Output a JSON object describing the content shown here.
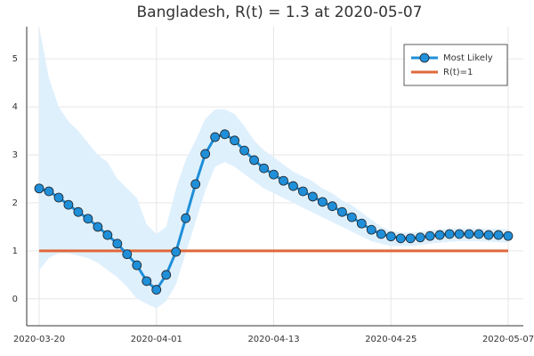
{
  "chart_data": {
    "type": "line",
    "title": "Bangladesh, R(t) = 1.3 at 2020-05-07",
    "x": [
      "2020-03-20",
      "2020-03-21",
      "2020-03-22",
      "2020-03-23",
      "2020-03-24",
      "2020-03-25",
      "2020-03-26",
      "2020-03-27",
      "2020-03-28",
      "2020-03-29",
      "2020-03-30",
      "2020-03-31",
      "2020-04-01",
      "2020-04-02",
      "2020-04-03",
      "2020-04-04",
      "2020-04-05",
      "2020-04-06",
      "2020-04-07",
      "2020-04-08",
      "2020-04-09",
      "2020-04-10",
      "2020-04-11",
      "2020-04-12",
      "2020-04-13",
      "2020-04-14",
      "2020-04-15",
      "2020-04-16",
      "2020-04-17",
      "2020-04-18",
      "2020-04-19",
      "2020-04-20",
      "2020-04-21",
      "2020-04-22",
      "2020-04-23",
      "2020-04-24",
      "2020-04-25",
      "2020-04-26",
      "2020-04-27",
      "2020-04-28",
      "2020-04-29",
      "2020-04-30",
      "2020-05-01",
      "2020-05-02",
      "2020-05-03",
      "2020-05-04",
      "2020-05-05",
      "2020-05-06",
      "2020-05-07"
    ],
    "series": [
      {
        "name": "Most Likely",
        "color": "#1f8fd9",
        "marker": true,
        "values": [
          2.3,
          2.24,
          2.11,
          1.96,
          1.81,
          1.67,
          1.5,
          1.33,
          1.15,
          0.93,
          0.7,
          0.37,
          0.19,
          0.5,
          0.98,
          1.68,
          2.39,
          3.02,
          3.37,
          3.43,
          3.3,
          3.09,
          2.89,
          2.72,
          2.59,
          2.46,
          2.35,
          2.24,
          2.13,
          2.02,
          1.93,
          1.81,
          1.7,
          1.57,
          1.44,
          1.35,
          1.3,
          1.26,
          1.26,
          1.28,
          1.31,
          1.33,
          1.35,
          1.35,
          1.35,
          1.35,
          1.33,
          1.33,
          1.31
        ]
      },
      {
        "name": "R(t)=1",
        "color": "#e0683b",
        "marker": false,
        "values": [
          1,
          1,
          1,
          1,
          1,
          1,
          1,
          1,
          1,
          1,
          1,
          1,
          1,
          1,
          1,
          1,
          1,
          1,
          1,
          1,
          1,
          1,
          1,
          1,
          1,
          1,
          1,
          1,
          1,
          1,
          1,
          1,
          1,
          1,
          1,
          1,
          1,
          1,
          1,
          1,
          1,
          1,
          1,
          1,
          1,
          1,
          1,
          1,
          1
        ]
      }
    ],
    "band_color": "#dff0fd",
    "band_upper": [
      5.67,
      4.6,
      4.0,
      3.7,
      3.5,
      3.25,
      3.0,
      2.85,
      2.5,
      2.3,
      2.1,
      1.55,
      1.35,
      1.5,
      2.3,
      2.9,
      3.3,
      3.75,
      3.95,
      3.95,
      3.85,
      3.6,
      3.3,
      3.1,
      2.95,
      2.8,
      2.65,
      2.55,
      2.45,
      2.3,
      2.2,
      2.05,
      1.95,
      1.8,
      1.65,
      1.5,
      1.42,
      1.38,
      1.38,
      1.4,
      1.43,
      1.45,
      1.47,
      1.47,
      1.47,
      1.47,
      1.46,
      1.46,
      1.45
    ],
    "band_lower": [
      0.6,
      0.85,
      0.95,
      0.95,
      0.9,
      0.85,
      0.75,
      0.6,
      0.45,
      0.25,
      0.0,
      -0.1,
      -0.2,
      -0.05,
      0.3,
      0.95,
      1.6,
      2.25,
      2.75,
      2.85,
      2.75,
      2.6,
      2.45,
      2.3,
      2.2,
      2.1,
      2.0,
      1.9,
      1.8,
      1.7,
      1.6,
      1.5,
      1.4,
      1.3,
      1.2,
      1.15,
      1.1,
      1.1,
      1.1,
      1.12,
      1.15,
      1.17,
      1.19,
      1.2,
      1.2,
      1.2,
      1.19,
      1.18,
      1.17
    ],
    "ylim": [
      -0.56,
      5.67
    ],
    "yticks": [
      0,
      1,
      2,
      3,
      4,
      5
    ],
    "xticks": [
      "2020-03-20",
      "2020-04-01",
      "2020-04-13",
      "2020-04-25",
      "2020-05-07"
    ],
    "grid": true,
    "legend": "upper right"
  }
}
